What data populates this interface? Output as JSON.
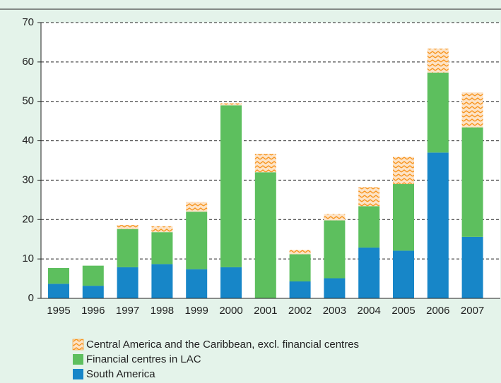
{
  "chart_data": {
    "type": "stacked-bar",
    "categories": [
      "1995",
      "1996",
      "1997",
      "1998",
      "1999",
      "2000",
      "2001",
      "2002",
      "2003",
      "2004",
      "2005",
      "2006",
      "2007"
    ],
    "series": [
      {
        "name": "South America",
        "color": "#1786c8",
        "values": [
          3.7,
          3.2,
          7.9,
          8.7,
          7.4,
          7.9,
          0,
          4.3,
          5.1,
          12.9,
          12.1,
          37.0,
          15.6
        ]
      },
      {
        "name": "Financial centres in LAC",
        "color": "#5dbf5e",
        "values": [
          4.0,
          5.1,
          9.7,
          8.1,
          14.6,
          41.1,
          32.0,
          6.9,
          14.7,
          10.5,
          16.9,
          20.3,
          27.8
        ]
      },
      {
        "name": "Central America and the Caribbean, excl. financial centres",
        "color": "#f7941d",
        "values": [
          0,
          0,
          1.0,
          1.5,
          2.5,
          0.5,
          4.7,
          1.1,
          1.6,
          4.8,
          6.9,
          6.1,
          8.9
        ]
      }
    ],
    "ylim": [
      0,
      70
    ],
    "yticks": [
      0,
      10,
      20,
      30,
      40,
      50,
      60,
      70
    ],
    "grid": true
  }
}
